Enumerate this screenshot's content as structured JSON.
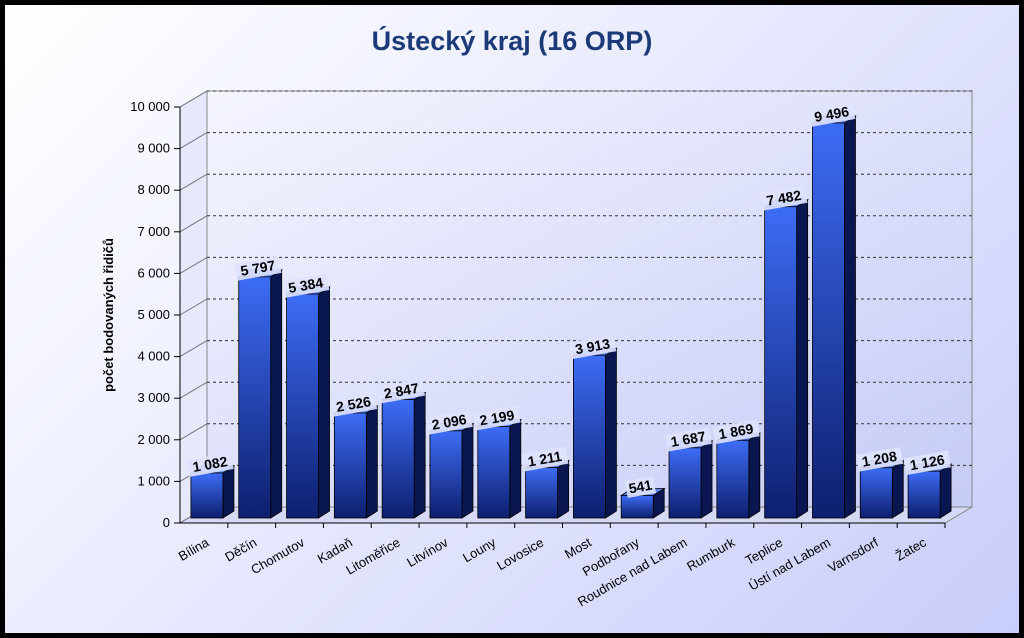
{
  "chart_data": {
    "type": "bar",
    "title": "Ústecký kraj (16 ORP)",
    "xlabel": "",
    "ylabel": "počet bodovaných řidičů",
    "ylim": [
      0,
      10000
    ],
    "yticks": [
      "0",
      "1 000",
      "2 000",
      "3 000",
      "4 000",
      "5 000",
      "6 000",
      "7 000",
      "8 000",
      "9 000",
      "10 000"
    ],
    "categories": [
      "Bílina",
      "Děčín",
      "Chomutov",
      "Kadaň",
      "Litoměřice",
      "Litvínov",
      "Louny",
      "Lovosice",
      "Most",
      "Podbořany",
      "Roudnice nad Labem",
      "Rumburk",
      "Teplice",
      "Ústí nad Labem",
      "Varnsdorf",
      "Žatec"
    ],
    "values": [
      1082,
      5797,
      5384,
      2526,
      2847,
      2096,
      2199,
      1211,
      3913,
      541,
      1687,
      1869,
      7482,
      9496,
      1208,
      1126
    ],
    "value_labels": [
      "1 082",
      "5 797",
      "5 384",
      "2 526",
      "2 847",
      "2 096",
      "2 199",
      "1 211",
      "3 913",
      "541",
      "1 687",
      "1 869",
      "7 482",
      "9 496",
      "1 208",
      "1 126"
    ],
    "grid": true,
    "legend": "none",
    "colors": {
      "bar_front_top": "#3d6cf5",
      "bar_front_bottom": "#0d1f6e",
      "bar_side": "#0a1650",
      "bar_top": "#5b80f0",
      "title": "#1c3a78"
    }
  }
}
